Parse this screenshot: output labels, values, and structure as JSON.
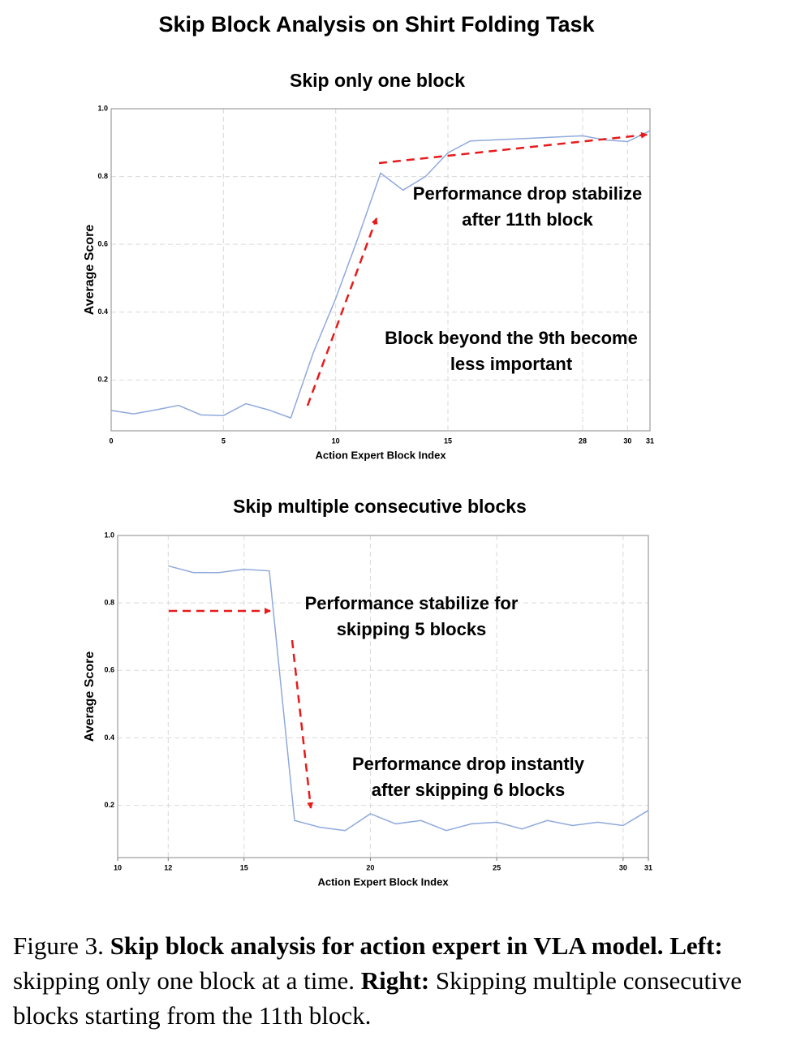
{
  "title": "Skip Block Analysis on Shirt Folding Task",
  "chart_data": [
    {
      "type": "line",
      "title": "Skip only one block",
      "x_label": "Action Expert Block Index",
      "y_label": "Average Score",
      "categories": [
        "0",
        null,
        null,
        null,
        null,
        "5",
        null,
        null,
        null,
        null,
        "10",
        null,
        null,
        null,
        null,
        "15",
        null,
        null,
        null,
        null,
        null,
        "28",
        null,
        "30",
        "31"
      ],
      "series": [
        {
          "name": "Average Score",
          "color": "#8fa9dc",
          "values": [
            0.11,
            0.1,
            0.112,
            0.125,
            0.097,
            0.095,
            0.13,
            0.112,
            0.088,
            0.28,
            0.44,
            0.62,
            0.81,
            0.76,
            0.8,
            0.87,
            0.905,
            0.908,
            0.911,
            0.914,
            0.917,
            0.92,
            0.908,
            0.903,
            0.935
          ]
        }
      ],
      "ylim": [
        0.05,
        1.0
      ],
      "yticks": [
        0.2,
        0.4,
        0.6,
        0.8,
        {
          "value": 1,
          "label": "1.0"
        }
      ],
      "grid": true,
      "annotations": [
        {
          "text": [
            "Performance drop stabilize",
            "after 11th block"
          ]
        },
        {
          "text": [
            "Block beyond the 9th become",
            "less important"
          ]
        }
      ]
    },
    {
      "type": "line",
      "title": "Skip multiple consecutive blocks",
      "x_label": "Action Expert Block Index",
      "y_label": "Average Score",
      "x": [
        12,
        13,
        14,
        15,
        16,
        17,
        18,
        19,
        20,
        21,
        22,
        23,
        24,
        25,
        26,
        27,
        28,
        29,
        30,
        31
      ],
      "series": [
        {
          "name": "Average Score",
          "color": "#8fa9dc",
          "values": [
            0.91,
            0.89,
            0.89,
            0.9,
            0.895,
            0.155,
            0.135,
            0.125,
            0.175,
            0.145,
            0.155,
            0.125,
            0.145,
            0.15,
            0.13,
            0.155,
            0.14,
            0.15,
            0.14,
            0.185
          ]
        }
      ],
      "xlim": [
        10,
        31
      ],
      "xticks": [
        10,
        12,
        15,
        20,
        25,
        30,
        31
      ],
      "ylim": [
        0.045,
        1.0
      ],
      "yticks": [
        0.2,
        0.4,
        0.6,
        0.8,
        {
          "value": 1,
          "label": "1.0"
        }
      ],
      "grid": true,
      "annotations": [
        {
          "text": [
            "Performance stabilize for",
            "skipping 5 blocks"
          ]
        },
        {
          "text": [
            "Performance drop instantly",
            "after skipping 6 blocks"
          ]
        }
      ]
    }
  ],
  "caption": [
    "Figure 3. ",
    "Skip block analysis for action expert in VLA model.",
    " ",
    "Left:",
    " skipping only one block at a time. ",
    "Right:",
    " Skipping multiple consecutive blocks starting from the 11th block."
  ]
}
